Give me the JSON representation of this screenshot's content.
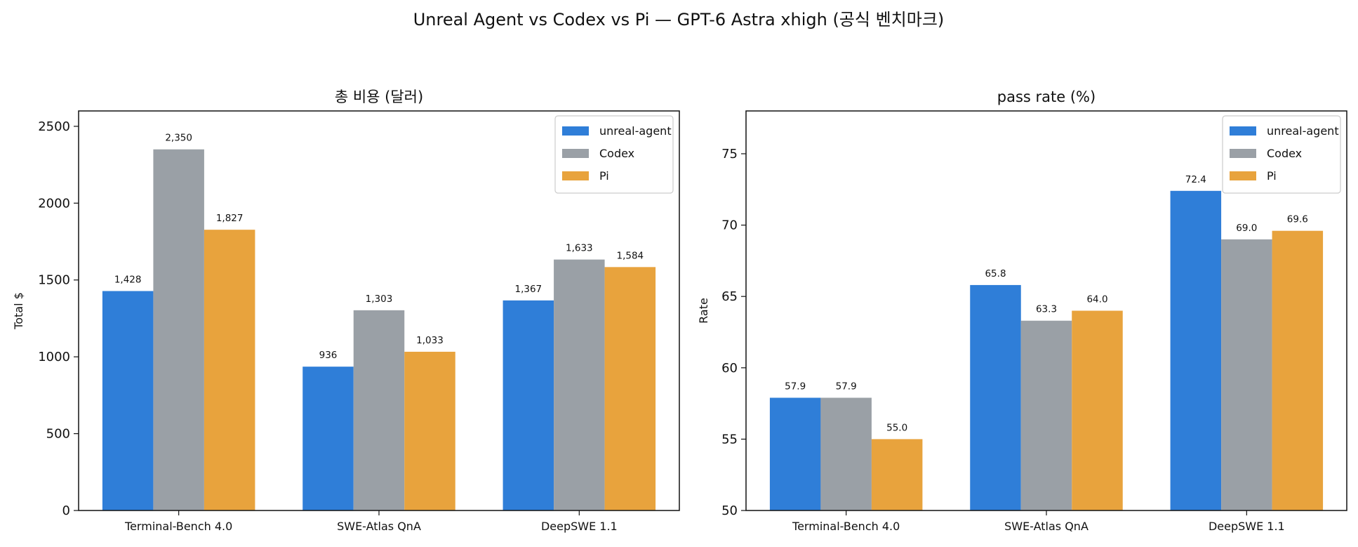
{
  "title": "Unreal Agent vs Codex vs Pi — GPT-6 Astra xhigh (공식 벤치마크)",
  "chart_data": [
    {
      "type": "bar",
      "title": "총 비용 (달러)",
      "xlabel": "",
      "ylabel": "Total $",
      "ylim": [
        0,
        2600
      ],
      "yticks": [
        0,
        500,
        1000,
        1500,
        2000,
        2500
      ],
      "ytick_labels": [
        "0",
        "500",
        "1000",
        "1500",
        "2000",
        "2500"
      ],
      "categories": [
        "Terminal-Bench 4.0",
        "SWE-Atlas QnA",
        "DeepSWE 1.1"
      ],
      "legend_position": "top-right",
      "grid": false,
      "series": [
        {
          "name": "unreal-agent",
          "color": "#2f7ed8",
          "values": [
            1428,
            936,
            1367
          ],
          "labels": [
            "1,428",
            "936",
            "1,367"
          ]
        },
        {
          "name": "Codex",
          "color": "#9aa0a6",
          "values": [
            2350,
            1303,
            1633
          ],
          "labels": [
            "2,350",
            "1,303",
            "1,633"
          ]
        },
        {
          "name": "Pi",
          "color": "#e8a33d",
          "values": [
            1827,
            1033,
            1584
          ],
          "labels": [
            "1,827",
            "1,033",
            "1,584"
          ]
        }
      ]
    },
    {
      "type": "bar",
      "title": "pass rate (%)",
      "xlabel": "",
      "ylabel": "Rate",
      "ylim": [
        50,
        78
      ],
      "yticks": [
        50,
        55,
        60,
        65,
        70,
        75
      ],
      "ytick_labels": [
        "50",
        "55",
        "60",
        "65",
        "70",
        "75"
      ],
      "categories": [
        "Terminal-Bench 4.0",
        "SWE-Atlas QnA",
        "DeepSWE 1.1"
      ],
      "legend_position": "top-right",
      "grid": false,
      "series": [
        {
          "name": "unreal-agent",
          "color": "#2f7ed8",
          "values": [
            57.9,
            65.8,
            72.4
          ],
          "labels": [
            "57.9",
            "65.8",
            "72.4"
          ]
        },
        {
          "name": "Codex",
          "color": "#9aa0a6",
          "values": [
            57.9,
            63.3,
            69.0
          ],
          "labels": [
            "57.9",
            "63.3",
            "69.0"
          ]
        },
        {
          "name": "Pi",
          "color": "#e8a33d",
          "values": [
            55.0,
            64.0,
            69.6
          ],
          "labels": [
            "55.0",
            "64.0",
            "69.6"
          ]
        }
      ]
    }
  ]
}
